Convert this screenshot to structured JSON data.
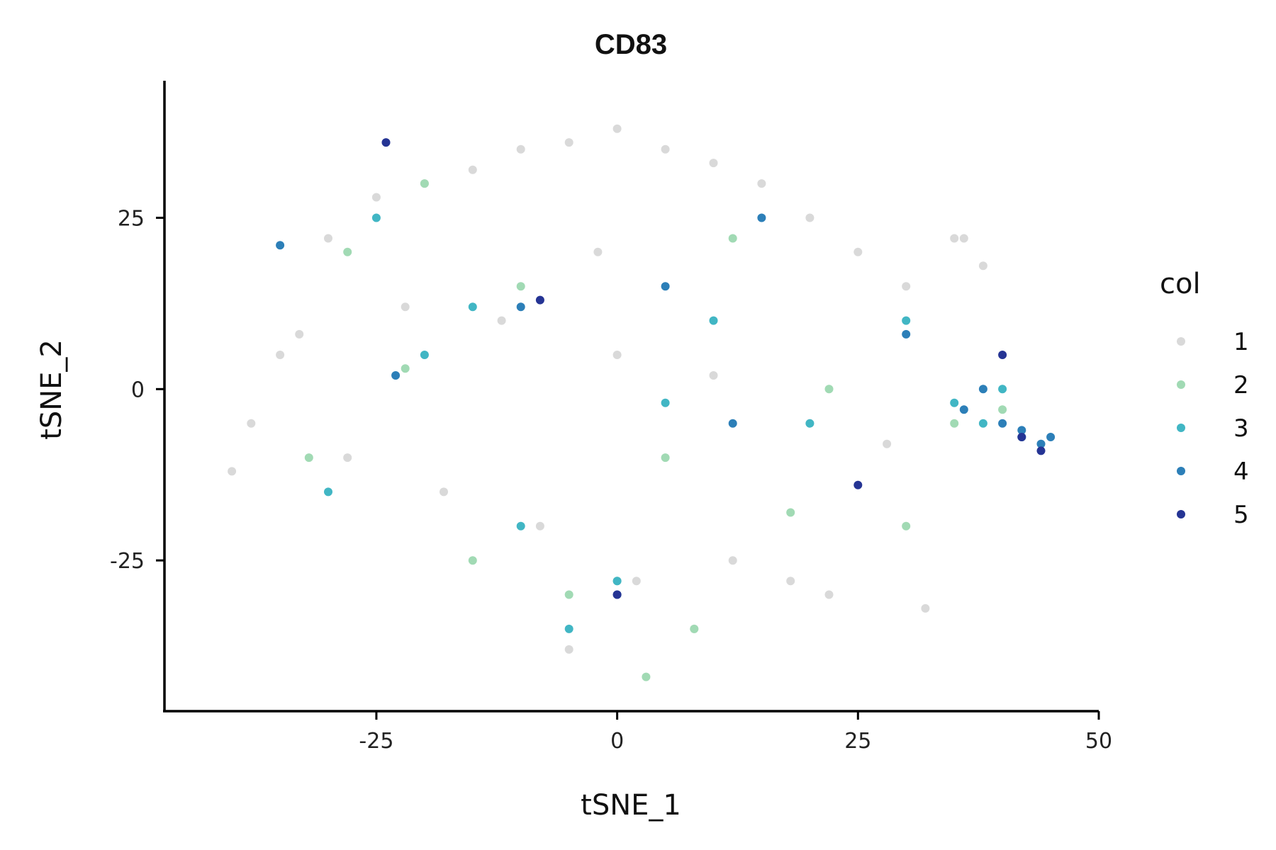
{
  "chart_data": {
    "type": "scatter",
    "title": "CD83",
    "xlabel": "tSNE_1",
    "ylabel": "tSNE_2",
    "xlim": [
      -47,
      50
    ],
    "ylim": [
      -47,
      45
    ],
    "xticks": [
      -25,
      0,
      25,
      50
    ],
    "yticks": [
      -25,
      0,
      25
    ],
    "grid": false,
    "legend": {
      "title": "col",
      "placement": "right",
      "entries": [
        {
          "label": "1",
          "color": "#d9d9d9"
        },
        {
          "label": "2",
          "color": "#a1dab4"
        },
        {
          "label": "3",
          "color": "#41b6c4"
        },
        {
          "label": "4",
          "color": "#2c7fb8"
        },
        {
          "label": "5",
          "color": "#253494"
        }
      ]
    },
    "series": [
      {
        "name": "1",
        "color": "#d9d9d9",
        "x": [
          -40,
          -35,
          -30,
          -25,
          -20,
          -15,
          -10,
          -5,
          0,
          5,
          10,
          15,
          20,
          25,
          30,
          35,
          -38,
          -28,
          -18,
          -8,
          2,
          12,
          22,
          32,
          -33,
          -22,
          -12,
          0,
          10,
          20,
          28,
          -5,
          8,
          18,
          -2,
          36,
          38
        ],
        "y": [
          -12,
          5,
          22,
          28,
          30,
          32,
          35,
          36,
          38,
          35,
          33,
          30,
          25,
          20,
          15,
          22,
          -5,
          -10,
          -15,
          -20,
          -28,
          -25,
          -30,
          -32,
          8,
          12,
          10,
          5,
          2,
          -5,
          -8,
          -38,
          -35,
          -28,
          20,
          22,
          18
        ]
      },
      {
        "name": "2",
        "color": "#a1dab4",
        "x": [
          -32,
          -22,
          -15,
          -5,
          5,
          12,
          22,
          30,
          -20,
          -10,
          0,
          8,
          18,
          35,
          40,
          -28,
          3
        ],
        "y": [
          -10,
          3,
          -25,
          -30,
          -10,
          22,
          0,
          -20,
          30,
          15,
          -28,
          -35,
          -18,
          -5,
          -3,
          20,
          -42
        ]
      },
      {
        "name": "3",
        "color": "#41b6c4",
        "x": [
          -30,
          -20,
          -10,
          0,
          10,
          20,
          30,
          35,
          38,
          40,
          42,
          -25,
          -5,
          5,
          -15
        ],
        "y": [
          -15,
          5,
          -20,
          -28,
          10,
          -5,
          10,
          -2,
          -5,
          0,
          -7,
          25,
          -35,
          -2,
          12
        ]
      },
      {
        "name": "4",
        "color": "#2c7fb8",
        "x": [
          -23,
          -10,
          0,
          5,
          15,
          30,
          36,
          38,
          40,
          42,
          44,
          45,
          -35,
          12
        ],
        "y": [
          2,
          12,
          -30,
          15,
          25,
          8,
          -3,
          0,
          -5,
          -6,
          -8,
          -7,
          21,
          -5
        ]
      },
      {
        "name": "5",
        "color": "#253494",
        "x": [
          -24,
          -8,
          0,
          25,
          40,
          44,
          42
        ],
        "y": [
          36,
          13,
          -30,
          -14,
          5,
          -9,
          -7
        ]
      }
    ]
  }
}
